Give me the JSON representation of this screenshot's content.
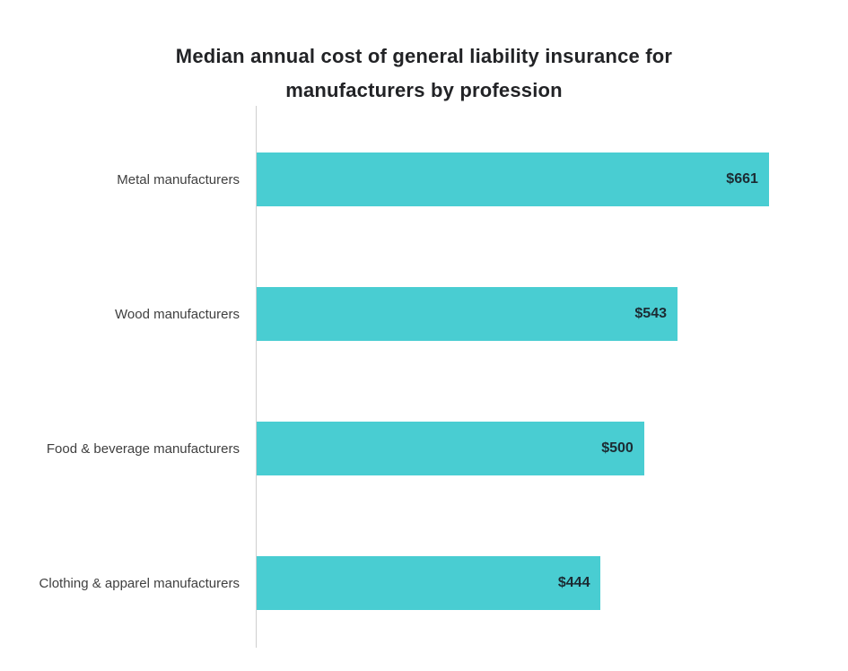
{
  "chart_data": {
    "type": "bar",
    "orientation": "horizontal",
    "title": "Median annual cost of general liability insurance for manufacturers by profession",
    "categories": [
      "Metal manufacturers",
      "Wood manufacturers",
      "Food & beverage manufacturers",
      "Clothing & apparel manufacturers"
    ],
    "values": [
      661,
      543,
      500,
      444
    ],
    "value_labels": [
      "$661",
      "$543",
      "$500",
      "$444"
    ],
    "xlabel": "",
    "ylabel": "",
    "xlim": [
      0,
      763
    ],
    "grid": false,
    "legend": false,
    "colors": {
      "bar": "#49cdd2",
      "title_text": "#222326",
      "category_text": "#3f3f3f",
      "value_text": "#1c2b33",
      "axis_line": "#cfcfcf",
      "background": "#ffffff"
    }
  }
}
